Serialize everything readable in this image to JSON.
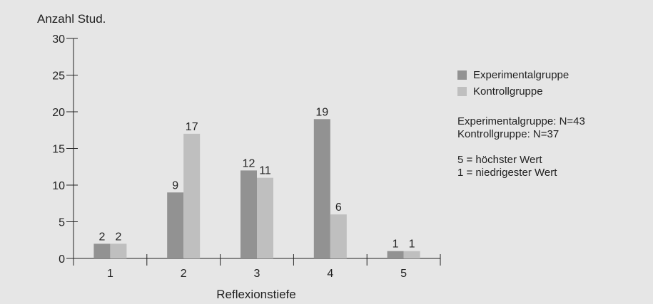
{
  "chart_data": {
    "type": "bar",
    "title": "",
    "ylabel": "Anzahl Stud.",
    "xlabel": "Reflexionstiefe",
    "categories": [
      "1",
      "2",
      "3",
      "4",
      "5"
    ],
    "ylim": [
      0,
      30
    ],
    "yticks": [
      "0",
      "5",
      "10",
      "15",
      "20",
      "25",
      "30"
    ],
    "series": [
      {
        "name": "Experimentalgruppe",
        "values": [
          2,
          9,
          12,
          19,
          1
        ],
        "labels": [
          "2",
          "9",
          "12",
          "19",
          "1"
        ],
        "color": "#929292"
      },
      {
        "name": "Kontrollgruppe",
        "values": [
          2,
          17,
          11,
          6,
          1
        ],
        "labels": [
          "2",
          "17",
          "11",
          "6",
          "1"
        ],
        "color": "#bfbfbf"
      }
    ],
    "legend_position": "right",
    "grid": false
  },
  "notes": {
    "n_experimental": "Experimentalgruppe: N=43",
    "n_control": "Kontrollgruppe: N=37",
    "scale_high": "5 = höchster Wert",
    "scale_low": "1 = niedrigester Wert"
  },
  "colors": {
    "background": "#e6e6e6",
    "axis": "#222222"
  }
}
